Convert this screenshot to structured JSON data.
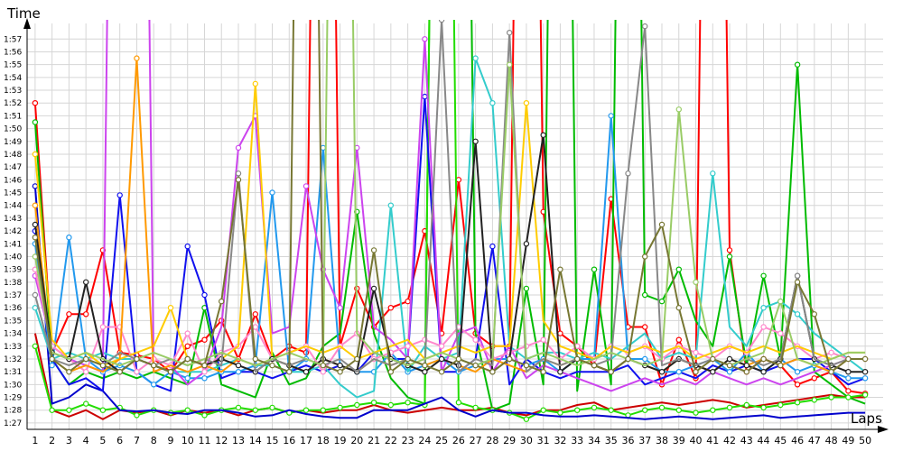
{
  "chart_data": {
    "type": "line",
    "title": "",
    "xlabel": "Laps",
    "ylabel": "Time",
    "grid": true,
    "legend": "none",
    "x": [
      1,
      2,
      3,
      4,
      5,
      6,
      7,
      8,
      9,
      10,
      11,
      12,
      13,
      14,
      15,
      16,
      17,
      18,
      19,
      20,
      21,
      22,
      23,
      24,
      25,
      26,
      27,
      28,
      29,
      30,
      31,
      32,
      33,
      34,
      35,
      36,
      37,
      38,
      39,
      40,
      41,
      42,
      43,
      44,
      45,
      46,
      47,
      48,
      49,
      50
    ],
    "y_ticks": [
      "1:27",
      "1:28",
      "1:29",
      "1:30",
      "1:31",
      "1:32",
      "1:33",
      "1:34",
      "1:35",
      "1:36",
      "1:37",
      "1:38",
      "1:39",
      "1:40",
      "1:41",
      "1:42",
      "1:43",
      "1:44",
      "1:45",
      "1:46",
      "1:47",
      "1:48",
      "1:49",
      "1:50",
      "1:51",
      "1:52",
      "1:53",
      "1:54",
      "1:55",
      "1:56",
      "1:57"
    ],
    "ylim": [
      "1:26.5",
      "1:58.5"
    ],
    "series": [
      {
        "color": "#ff0000",
        "values": [
          112.0,
          92.5,
          95.5,
          95.5,
          100.5,
          92.5,
          92.3,
          92.0,
          91.0,
          93.0,
          93.5,
          95.0,
          92.0,
          95.5,
          92.0,
          93.0,
          92.5,
          200,
          93.0,
          97.5,
          94.5,
          96.0,
          96.5,
          102.0,
          94.0,
          106.0,
          94.0,
          93.0,
          93.0,
          200,
          103.5,
          94.0,
          93.0,
          91.5,
          104.5,
          94.5,
          94.5,
          90.0,
          93.5,
          90.5,
          200,
          100.5,
          91.0,
          92.0,
          91.5,
          90.0,
          90.5,
          91.0,
          89.5,
          89.3
        ]
      },
      {
        "color": "#cc0000",
        "values": [
          94.0,
          88.0,
          87.5,
          88.0,
          87.3,
          88.0,
          87.8,
          88.0,
          87.6,
          88.0,
          87.8,
          88.0,
          87.6,
          88.0,
          88.2,
          87.8,
          88.0,
          87.8,
          88.0,
          88.0,
          88.4,
          88.0,
          87.8,
          88.0,
          88.2,
          88.0,
          88.0,
          88.2,
          87.8,
          87.6,
          88.0,
          88.0,
          88.4,
          88.6,
          88.0,
          88.2,
          88.4,
          88.6,
          88.4,
          88.6,
          88.8,
          88.6,
          88.2,
          88.4,
          88.6,
          88.8,
          89.0,
          89.2,
          89.0,
          89.0
        ]
      },
      {
        "color": "#00bb00",
        "values": [
          110.5,
          92.0,
          90.0,
          91.0,
          90.5,
          91.0,
          90.5,
          91.0,
          90.5,
          90.0,
          96.0,
          90.0,
          89.5,
          89.0,
          92.5,
          90.0,
          90.5,
          93.0,
          94.0,
          103.5,
          94.0,
          90.5,
          89.0,
          88.5,
          200,
          200,
          94.0,
          88.0,
          88.5,
          97.5,
          90.0,
          200,
          89.5,
          99.0,
          90.0,
          200,
          97.0,
          96.5,
          99.0,
          95.0,
          93.0,
          100.0,
          91.5,
          98.5,
          92.0,
          115.0,
          91.0,
          90.0,
          89.0,
          88.5
        ]
      },
      {
        "color": "#22dd00",
        "values": [
          93.0,
          88.0,
          88.0,
          88.5,
          88.0,
          88.2,
          87.6,
          88.0,
          87.8,
          88.0,
          87.6,
          88.0,
          88.2,
          88.0,
          88.2,
          87.8,
          88.0,
          88.0,
          88.2,
          88.4,
          88.6,
          88.4,
          88.6,
          88.4,
          200,
          88.6,
          88.2,
          88.0,
          87.8,
          87.3,
          88.0,
          87.8,
          88.0,
          88.2,
          88.0,
          87.6,
          88.0,
          88.2,
          88.0,
          87.8,
          88.0,
          88.2,
          88.4,
          88.2,
          88.4,
          88.6,
          88.8,
          89.0,
          89.0,
          89.2
        ]
      },
      {
        "color": "#0000cc",
        "values": [
          105.5,
          88.5,
          89.0,
          90.0,
          89.5,
          88.0,
          87.9,
          88.0,
          87.8,
          87.7,
          88.0,
          88.0,
          87.8,
          87.5,
          87.6,
          88.0,
          87.7,
          87.5,
          87.4,
          87.4,
          88.0,
          88.0,
          88.0,
          88.5,
          89.0,
          88.0,
          87.5,
          88.0,
          87.8,
          87.8,
          87.6,
          87.5,
          87.5,
          87.6,
          87.5,
          87.4,
          87.3,
          87.4,
          87.5,
          87.4,
          87.3,
          87.4,
          87.5,
          87.6,
          87.4,
          87.5,
          87.6,
          87.7,
          87.8,
          87.8
        ]
      },
      {
        "color": "#1111ee",
        "values": [
          102.0,
          92.0,
          90.0,
          90.5,
          89.5,
          104.8,
          91.0,
          90.0,
          89.5,
          100.8,
          97.0,
          90.5,
          91.0,
          91.0,
          90.5,
          91.0,
          91.5,
          91.0,
          91.5,
          91.0,
          92.5,
          92.0,
          92.0,
          112.5,
          91.0,
          91.0,
          92.0,
          100.8,
          90.0,
          92.0,
          91.0,
          90.5,
          91.0,
          91.0,
          91.0,
          91.5,
          90.0,
          90.5,
          91.0,
          90.5,
          91.5,
          91.0,
          91.5,
          91.0,
          91.5,
          92.0,
          92.0,
          91.0,
          90.0,
          90.5
        ]
      },
      {
        "color": "#2299ee",
        "values": [
          101.0,
          91.5,
          101.5,
          92.0,
          91.0,
          91.5,
          91.0,
          90.0,
          91.0,
          90.5,
          90.5,
          91.0,
          91.0,
          91.5,
          105.0,
          91.0,
          92.0,
          108.5,
          91.5,
          91.0,
          91.0,
          92.5,
          91.0,
          91.5,
          92.0,
          91.0,
          91.5,
          92.0,
          92.0,
          91.5,
          92.0,
          91.0,
          92.0,
          92.0,
          111.0,
          92.0,
          92.0,
          91.0,
          91.0,
          91.5,
          92.0,
          91.0,
          92.5,
          91.0,
          92.0,
          91.0,
          91.5,
          91.0,
          90.5,
          90.5
        ]
      },
      {
        "color": "#33cccc",
        "values": [
          96.0,
          92.0,
          92.5,
          92.0,
          92.5,
          92.0,
          92.0,
          91.5,
          91.0,
          91.0,
          91.0,
          91.5,
          92.0,
          91.5,
          91.5,
          91.0,
          91.0,
          91.5,
          90.0,
          89.0,
          89.5,
          104.0,
          91.0,
          93.0,
          92.0,
          92.5,
          115.5,
          112.0,
          93.0,
          92.0,
          92.5,
          92.5,
          92.0,
          92.5,
          92.0,
          93.0,
          94.0,
          92.0,
          92.5,
          92.0,
          106.5,
          94.5,
          93.0,
          96.0,
          96.5,
          95.5,
          94.0,
          93.0,
          92.0,
          91.0
        ]
      },
      {
        "color": "#cc44ee",
        "values": [
          98.5,
          93.0,
          92.0,
          91.5,
          91.0,
          200,
          200,
          91.0,
          91.5,
          90.0,
          91.0,
          94.5,
          108.5,
          111.0,
          94.0,
          94.5,
          105.5,
          99.0,
          96.0,
          108.5,
          94.5,
          93.5,
          92.0,
          117.0,
          91.0,
          94.0,
          94.5,
          91.0,
          93.0,
          90.5,
          91.5,
          91.0,
          90.5,
          90.0,
          89.5,
          90.0,
          90.5,
          90.0,
          90.5,
          90.0,
          91.0,
          90.5,
          90.0,
          90.5,
          90.0,
          90.5,
          91.0,
          91.5,
          92.0,
          92.0
        ]
      },
      {
        "color": "#ff88cc",
        "values": [
          99.0,
          93.0,
          92.0,
          91.0,
          94.5,
          94.5,
          91.0,
          92.0,
          91.5,
          94.0,
          91.0,
          92.5,
          93.0,
          94.5,
          92.0,
          92.5,
          93.0,
          91.0,
          93.0,
          94.0,
          92.0,
          92.5,
          93.0,
          93.5,
          93.0,
          94.5,
          93.5,
          92.0,
          92.5,
          93.0,
          93.5,
          92.0,
          93.0,
          92.0,
          93.0,
          92.5,
          93.0,
          92.0,
          93.0,
          92.5,
          92.0,
          93.0,
          92.5,
          94.5,
          94.0,
          93.0,
          92.0,
          92.5,
          92.0,
          92.0
        ]
      },
      {
        "color": "#ffcc00",
        "values": [
          108.0,
          93.5,
          92.0,
          92.5,
          91.5,
          92.0,
          92.5,
          93.0,
          96.0,
          92.0,
          91.5,
          92.0,
          93.0,
          113.5,
          92.0,
          92.5,
          93.0,
          92.5,
          93.0,
          92.0,
          92.5,
          93.0,
          93.5,
          92.0,
          92.5,
          93.0,
          92.5,
          93.0,
          93.0,
          112.0,
          95.0,
          93.0,
          92.5,
          92.0,
          93.0,
          92.5,
          93.0,
          92.5,
          93.0,
          92.0,
          92.5,
          93.0,
          92.5,
          93.0,
          92.5,
          93.0,
          92.5,
          92.0,
          92.5,
          92.5
        ]
      },
      {
        "color": "#ff9900",
        "values": [
          104.0,
          92.0,
          91.0,
          91.5,
          91.0,
          92.0,
          115.5,
          91.0,
          91.5,
          91.0,
          91.5,
          91.0,
          92.0,
          91.5,
          92.0,
          91.5,
          91.0,
          92.0,
          91.5,
          91.0,
          92.0,
          91.5,
          92.0,
          91.5,
          92.0,
          91.5,
          91.0,
          92.0,
          91.5,
          91.0,
          92.0,
          91.5,
          92.0,
          91.5,
          91.0,
          92.0,
          91.5,
          91.0,
          92.0,
          91.5,
          91.0,
          92.0,
          91.5,
          92.0,
          91.5,
          92.0,
          91.5,
          91.0,
          92.0,
          92.0
        ]
      },
      {
        "color": "#222222",
        "values": [
          102.5,
          92.5,
          92.0,
          98.0,
          92.0,
          91.0,
          92.0,
          91.5,
          91.0,
          92.0,
          91.5,
          92.0,
          91.5,
          91.0,
          92.0,
          91.5,
          91.0,
          92.0,
          91.5,
          91.0,
          97.5,
          92.0,
          91.5,
          91.0,
          92.0,
          91.5,
          109.0,
          91.0,
          92.0,
          101.0,
          109.5,
          91.0,
          92.0,
          91.5,
          91.0,
          92.0,
          91.5,
          91.0,
          92.0,
          91.5,
          91.0,
          92.0,
          91.5,
          91.0,
          92.0,
          98.5,
          92.0,
          91.5,
          91.0,
          91.0
        ]
      },
      {
        "color": "#888888",
        "values": [
          97.0,
          92.0,
          91.5,
          92.0,
          91.5,
          92.5,
          92.0,
          91.5,
          92.0,
          91.5,
          92.0,
          91.5,
          106.5,
          91.0,
          92.0,
          91.5,
          92.0,
          91.5,
          92.0,
          91.0,
          92.0,
          91.5,
          92.0,
          91.5,
          118.5,
          91.0,
          92.0,
          91.5,
          117.5,
          91.0,
          92.0,
          91.5,
          92.0,
          91.5,
          92.0,
          106.5,
          118.0,
          91.5,
          92.0,
          91.5,
          92.0,
          91.5,
          92.0,
          91.5,
          92.0,
          98.5,
          92.0,
          91.5,
          92.0,
          92.0
        ]
      },
      {
        "color": "#99cc66",
        "values": [
          100.0,
          92.5,
          92.0,
          92.5,
          92.0,
          91.5,
          92.0,
          92.5,
          92.0,
          91.5,
          92.0,
          92.5,
          92.0,
          91.5,
          92.0,
          92.5,
          92.0,
          91.5,
          200,
          94.0,
          92.5,
          92.0,
          91.5,
          92.0,
          92.5,
          92.0,
          91.5,
          92.0,
          115.0,
          92.0,
          92.5,
          92.0,
          91.5,
          92.0,
          92.5,
          92.0,
          91.5,
          92.0,
          111.5,
          98.0,
          92.0,
          91.5,
          92.0,
          92.5,
          96.5,
          92.0,
          91.5,
          92.0,
          92.5,
          92.5
        ]
      },
      {
        "color": "#777733",
        "values": [
          101.5,
          92.0,
          91.0,
          92.0,
          91.5,
          91.0,
          92.0,
          91.5,
          91.0,
          92.0,
          91.5,
          96.5,
          106.0,
          92.0,
          91.5,
          91.0,
          200,
          91.5,
          91.0,
          92.0,
          100.5,
          91.0,
          92.0,
          91.5,
          91.0,
          92.0,
          91.5,
          91.0,
          92.0,
          91.5,
          91.0,
          99.0,
          92.0,
          91.5,
          91.0,
          92.0,
          100.0,
          102.5,
          96.0,
          91.0,
          92.0,
          91.5,
          91.0,
          92.0,
          91.5,
          98.0,
          95.5,
          91.0,
          92.0,
          92.0
        ]
      }
    ]
  }
}
